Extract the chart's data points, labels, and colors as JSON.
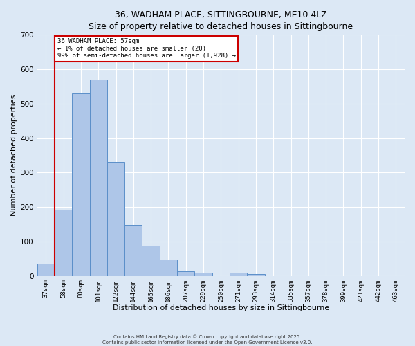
{
  "title": "36, WADHAM PLACE, SITTINGBOURNE, ME10 4LZ",
  "subtitle": "Size of property relative to detached houses in Sittingbourne",
  "xlabel": "Distribution of detached houses by size in Sittingbourne",
  "ylabel": "Number of detached properties",
  "categories": [
    "37sqm",
    "58sqm",
    "80sqm",
    "101sqm",
    "122sqm",
    "144sqm",
    "165sqm",
    "186sqm",
    "207sqm",
    "229sqm",
    "250sqm",
    "271sqm",
    "293sqm",
    "314sqm",
    "335sqm",
    "357sqm",
    "378sqm",
    "399sqm",
    "421sqm",
    "442sqm",
    "463sqm"
  ],
  "values": [
    35,
    192,
    530,
    570,
    330,
    148,
    88,
    48,
    14,
    10,
    0,
    10,
    5,
    0,
    0,
    0,
    0,
    0,
    0,
    0,
    0
  ],
  "bar_color": "#aec6e8",
  "bar_edge_color": "#5b8fc9",
  "marker_color": "#cc0000",
  "annotation_box_text": "36 WADHAM PLACE: 57sqm\n← 1% of detached houses are smaller (20)\n99% of semi-detached houses are larger (1,928) →",
  "annotation_box_color": "#cc0000",
  "annotation_box_fill": "#ffffff",
  "ylim": [
    0,
    700
  ],
  "yticks": [
    0,
    100,
    200,
    300,
    400,
    500,
    600,
    700
  ],
  "bg_color": "#dce8f5",
  "footer_line1": "Contains HM Land Registry data © Crown copyright and database right 2025.",
  "footer_line2": "Contains public sector information licensed under the Open Government Licence v3.0."
}
